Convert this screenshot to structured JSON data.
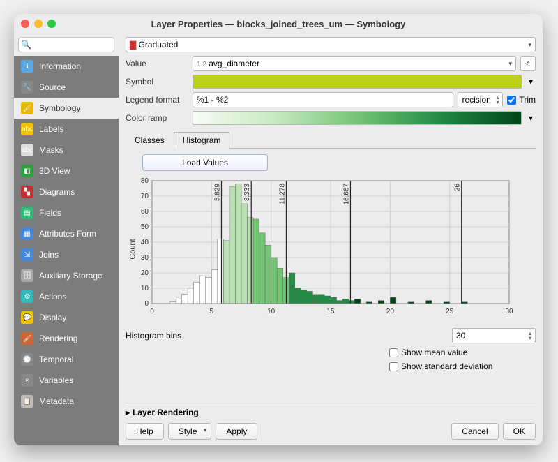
{
  "window": {
    "title": "Layer Properties — blocks_joined_trees_um — Symbology"
  },
  "traffic_colors": [
    "#ff5f57",
    "#febc2e",
    "#28c840"
  ],
  "search": {
    "placeholder": ""
  },
  "sidebar": {
    "items": [
      {
        "label": "Information",
        "icon": "ℹ",
        "bg": "#5aa9e6"
      },
      {
        "label": "Source",
        "icon": "🔧",
        "bg": "#888"
      },
      {
        "label": "Symbology",
        "icon": "🖌",
        "bg": "#e6b800",
        "active": true
      },
      {
        "label": "Labels",
        "icon": "abc",
        "bg": "#f2c200"
      },
      {
        "label": "Masks",
        "icon": "abc",
        "bg": "#ddd"
      },
      {
        "label": "3D View",
        "icon": "◧",
        "bg": "#2e9e3f"
      },
      {
        "label": "Diagrams",
        "icon": "▚",
        "bg": "#b33"
      },
      {
        "label": "Fields",
        "icon": "▤",
        "bg": "#3b7"
      },
      {
        "label": "Attributes Form",
        "icon": "▦",
        "bg": "#48d"
      },
      {
        "label": "Joins",
        "icon": "⇲",
        "bg": "#48d"
      },
      {
        "label": "Auxiliary Storage",
        "icon": "🗄",
        "bg": "#aaa"
      },
      {
        "label": "Actions",
        "icon": "⚙",
        "bg": "#3bb"
      },
      {
        "label": "Display",
        "icon": "💬",
        "bg": "#f2c200"
      },
      {
        "label": "Rendering",
        "icon": "🖌",
        "bg": "#c63"
      },
      {
        "label": "Temporal",
        "icon": "🕒",
        "bg": "#888"
      },
      {
        "label": "Variables",
        "icon": "ε",
        "bg": "#888"
      },
      {
        "label": "Metadata",
        "icon": "📋",
        "bg": "#bbb"
      }
    ]
  },
  "renderer": {
    "type": "Graduated",
    "icon": "▆"
  },
  "value": {
    "prefix": "1.2",
    "field": "avg_diameter",
    "eps": "ε"
  },
  "symbol": {
    "color": "#b9cf1a"
  },
  "legend": {
    "label": "Legend format",
    "format": "%1 - %2",
    "precision_label": "recision",
    "precision_value": "",
    "trim_label": "Trim",
    "trim_checked": true
  },
  "color_ramp": {
    "label": "Color ramp",
    "stops": [
      "#f7fcf5",
      "#c7e9c0",
      "#74c476",
      "#238b45",
      "#00441b"
    ]
  },
  "tabs": {
    "items": [
      "Classes",
      "Histogram"
    ],
    "active": 1
  },
  "load_button": "Load Values",
  "histogram": {
    "ylabel": "Count",
    "ylim": [
      0,
      80
    ],
    "ytick_step": 10,
    "xlim": [
      0,
      30
    ],
    "xtick_step": 5,
    "grid_color": "#d0d0d0",
    "break_line_color": "#222222",
    "breaks": [
      5.829,
      8.333,
      11.278,
      16.667,
      26
    ],
    "bin_width": 0.5,
    "bins": [
      {
        "x": 1.5,
        "c": 1,
        "f": "#ffffff"
      },
      {
        "x": 2.0,
        "c": 3,
        "f": "#ffffff"
      },
      {
        "x": 2.5,
        "c": 6,
        "f": "#ffffff"
      },
      {
        "x": 3.0,
        "c": 10,
        "f": "#ffffff"
      },
      {
        "x": 3.5,
        "c": 14,
        "f": "#ffffff"
      },
      {
        "x": 4.0,
        "c": 18,
        "f": "#ffffff"
      },
      {
        "x": 4.5,
        "c": 17,
        "f": "#ffffff"
      },
      {
        "x": 5.0,
        "c": 22,
        "f": "#ffffff"
      },
      {
        "x": 5.5,
        "c": 42,
        "f": "#ffffff"
      },
      {
        "x": 6.0,
        "c": 41,
        "f": "#b8e0b0"
      },
      {
        "x": 6.5,
        "c": 76,
        "f": "#b8e0b0"
      },
      {
        "x": 7.0,
        "c": 78,
        "f": "#b8e0b0"
      },
      {
        "x": 7.5,
        "c": 65,
        "f": "#b8e0b0"
      },
      {
        "x": 8.0,
        "c": 56,
        "f": "#b8e0b0"
      },
      {
        "x": 8.5,
        "c": 55,
        "f": "#74c476"
      },
      {
        "x": 9.0,
        "c": 46,
        "f": "#74c476"
      },
      {
        "x": 9.5,
        "c": 38,
        "f": "#74c476"
      },
      {
        "x": 10.0,
        "c": 30,
        "f": "#74c476"
      },
      {
        "x": 10.5,
        "c": 23,
        "f": "#74c476"
      },
      {
        "x": 11.0,
        "c": 17,
        "f": "#74c476"
      },
      {
        "x": 11.5,
        "c": 20,
        "f": "#238b45"
      },
      {
        "x": 12.0,
        "c": 10,
        "f": "#238b45"
      },
      {
        "x": 12.5,
        "c": 9,
        "f": "#238b45"
      },
      {
        "x": 13.0,
        "c": 8,
        "f": "#238b45"
      },
      {
        "x": 13.5,
        "c": 6,
        "f": "#238b45"
      },
      {
        "x": 14.0,
        "c": 6,
        "f": "#238b45"
      },
      {
        "x": 14.5,
        "c": 5,
        "f": "#238b45"
      },
      {
        "x": 15.0,
        "c": 4,
        "f": "#238b45"
      },
      {
        "x": 15.5,
        "c": 2,
        "f": "#238b45"
      },
      {
        "x": 16.0,
        "c": 3,
        "f": "#238b45"
      },
      {
        "x": 16.5,
        "c": 2,
        "f": "#238b45"
      },
      {
        "x": 17.0,
        "c": 3,
        "f": "#00441b"
      },
      {
        "x": 18.0,
        "c": 1,
        "f": "#00441b"
      },
      {
        "x": 19.0,
        "c": 2,
        "f": "#00441b"
      },
      {
        "x": 20.0,
        "c": 4,
        "f": "#00441b"
      },
      {
        "x": 21.5,
        "c": 1,
        "f": "#00441b"
      },
      {
        "x": 23.0,
        "c": 2,
        "f": "#00441b"
      },
      {
        "x": 24.5,
        "c": 1,
        "f": "#00441b"
      },
      {
        "x": 26.0,
        "c": 1,
        "f": "#00441b"
      }
    ]
  },
  "bins_row": {
    "label": "Histogram bins",
    "value": "30"
  },
  "options": {
    "mean_label": "Show mean value",
    "std_label": "Show standard deviation"
  },
  "section": {
    "title": "Layer Rendering"
  },
  "footer": {
    "help": "Help",
    "style": "Style",
    "apply": "Apply",
    "cancel": "Cancel",
    "ok": "OK"
  }
}
